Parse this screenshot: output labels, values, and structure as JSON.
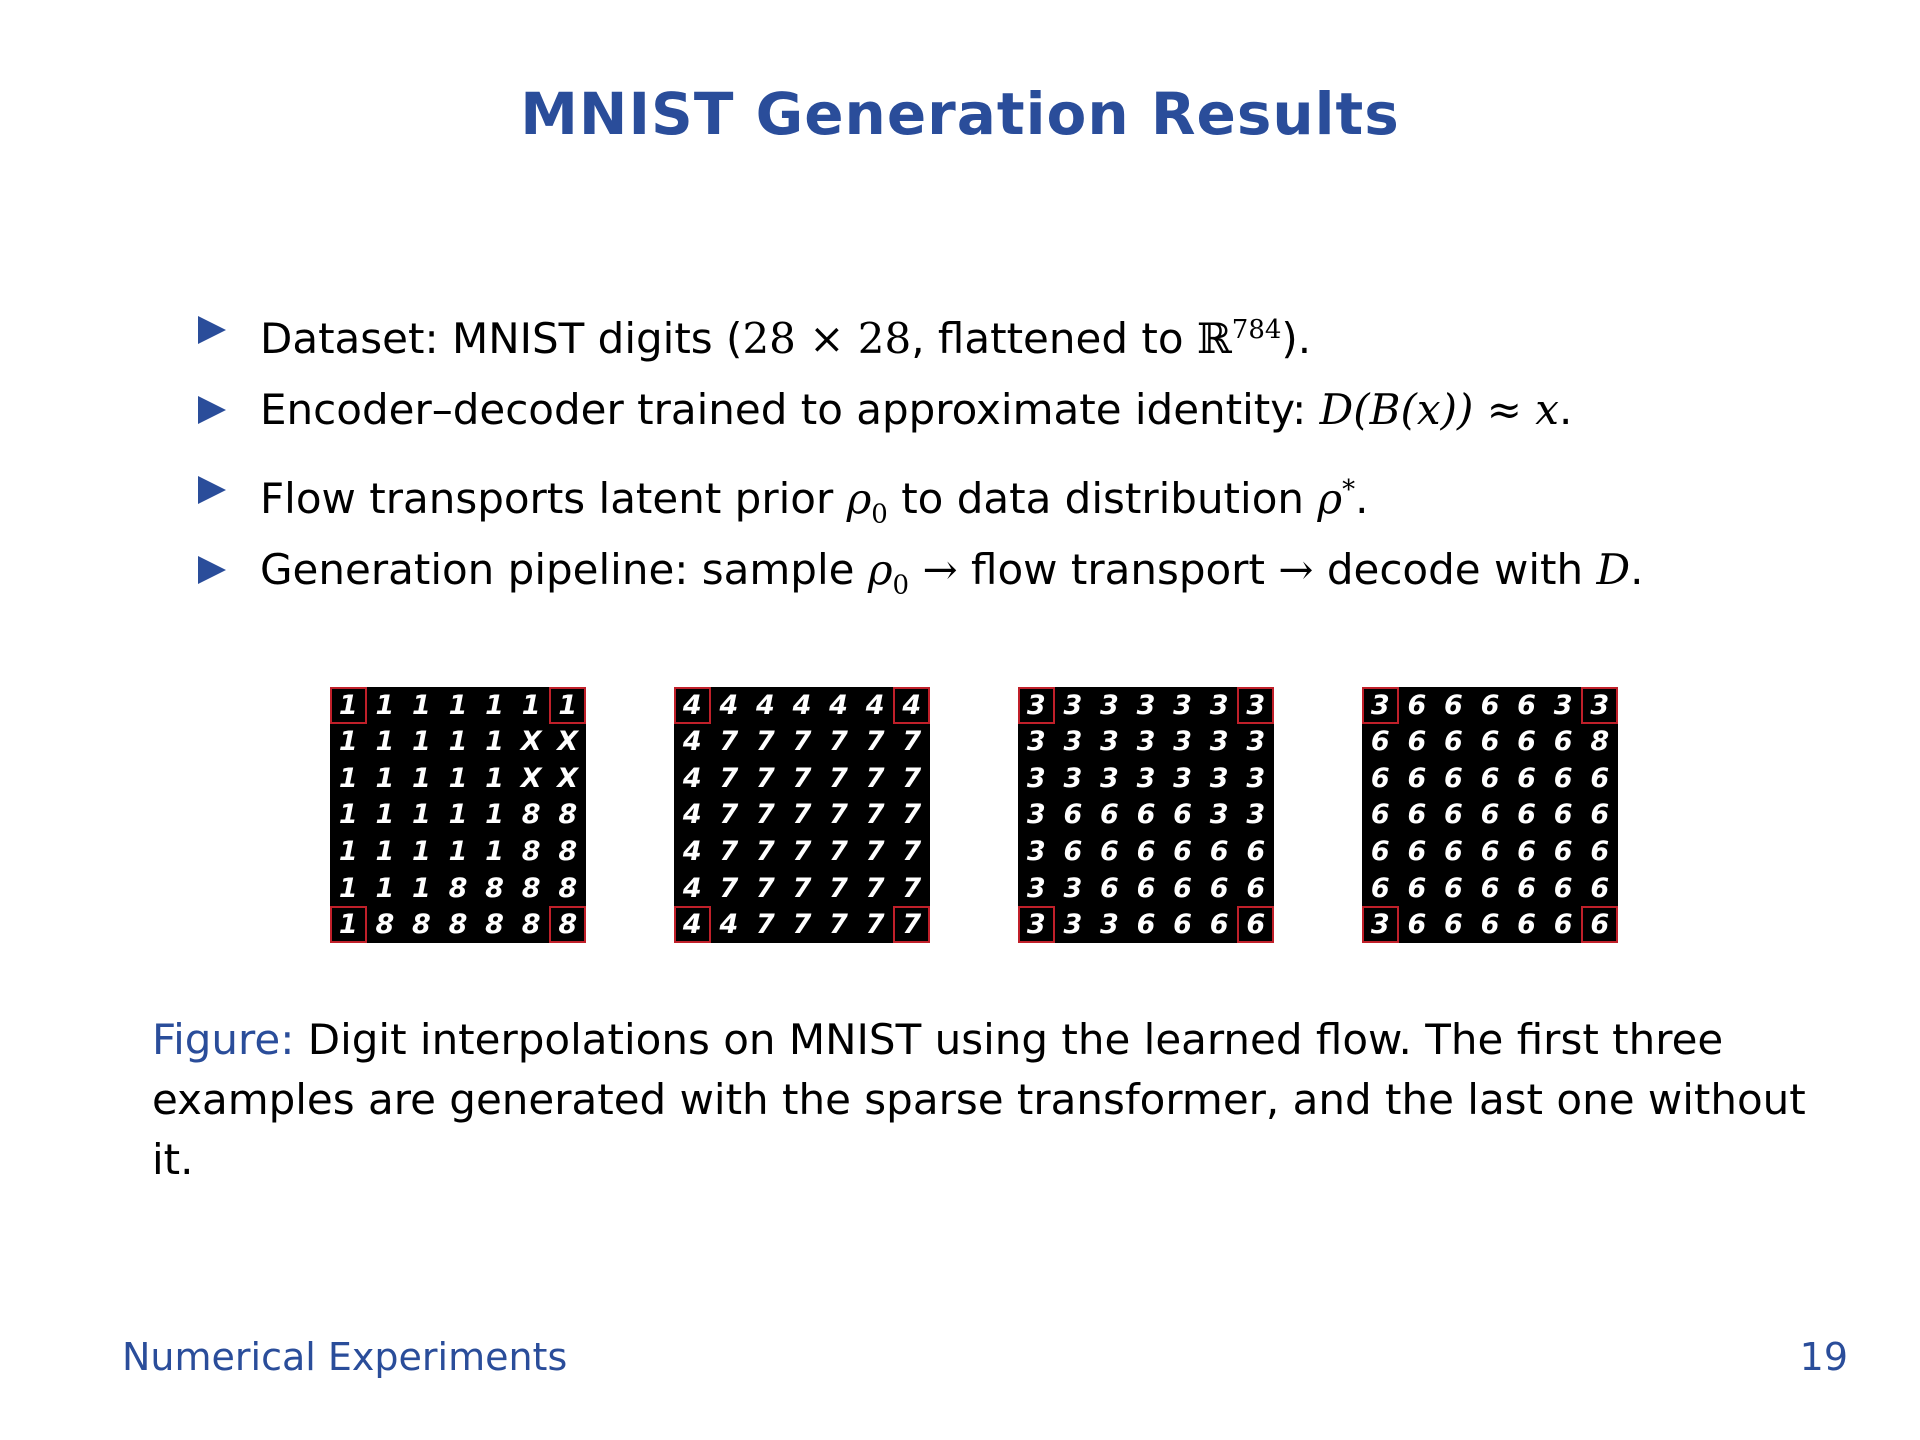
{
  "title": "MNIST Generation Results",
  "bullets": [
    {
      "a": "Dataset: MNIST digits (",
      "m1": "28 × 28",
      "b": ", flattened to ",
      "m2": "ℝ",
      "sup": "784",
      "c": ")."
    },
    {
      "a": "Encoder–decoder trained to approximate identity: ",
      "m1": "D(B(x)) ≈ x",
      "c": "."
    },
    {
      "a": "Flow transports latent prior ",
      "m1": "ρ",
      "sub": "0",
      "b": " to data distribution ",
      "m2": "ρ",
      "sup": "*",
      "c": "."
    },
    {
      "a": "Generation pipeline: sample ",
      "m1": "ρ",
      "sub": "0",
      "arrow1": " → ",
      "b": "flow transport",
      "arrow2": " → ",
      "c": "decode with ",
      "m2": "D",
      "d": "."
    }
  ],
  "grids": [
    {
      "rows": [
        [
          "1",
          "1",
          "1",
          "1",
          "1",
          "1",
          "1"
        ],
        [
          "1",
          "1",
          "1",
          "1",
          "1",
          "X",
          "X"
        ],
        [
          "1",
          "1",
          "1",
          "1",
          "1",
          "X",
          "X"
        ],
        [
          "1",
          "1",
          "1",
          "1",
          "1",
          "8",
          "8"
        ],
        [
          "1",
          "1",
          "1",
          "1",
          "1",
          "8",
          "8"
        ],
        [
          "1",
          "1",
          "1",
          "8",
          "8",
          "8",
          "8"
        ],
        [
          "1",
          "8",
          "8",
          "8",
          "8",
          "8",
          "8"
        ]
      ]
    },
    {
      "rows": [
        [
          "4",
          "4",
          "4",
          "4",
          "4",
          "4",
          "4"
        ],
        [
          "4",
          "7",
          "7",
          "7",
          "7",
          "7",
          "7"
        ],
        [
          "4",
          "7",
          "7",
          "7",
          "7",
          "7",
          "7"
        ],
        [
          "4",
          "7",
          "7",
          "7",
          "7",
          "7",
          "7"
        ],
        [
          "4",
          "7",
          "7",
          "7",
          "7",
          "7",
          "7"
        ],
        [
          "4",
          "7",
          "7",
          "7",
          "7",
          "7",
          "7"
        ],
        [
          "4",
          "4",
          "7",
          "7",
          "7",
          "7",
          "7"
        ]
      ]
    },
    {
      "rows": [
        [
          "3",
          "3",
          "3",
          "3",
          "3",
          "3",
          "3"
        ],
        [
          "3",
          "3",
          "3",
          "3",
          "3",
          "3",
          "3"
        ],
        [
          "3",
          "3",
          "3",
          "3",
          "3",
          "3",
          "3"
        ],
        [
          "3",
          "6",
          "6",
          "6",
          "6",
          "3",
          "3"
        ],
        [
          "3",
          "6",
          "6",
          "6",
          "6",
          "6",
          "6"
        ],
        [
          "3",
          "3",
          "6",
          "6",
          "6",
          "6",
          "6"
        ],
        [
          "3",
          "3",
          "3",
          "6",
          "6",
          "6",
          "6"
        ]
      ]
    },
    {
      "rows": [
        [
          "3",
          "6",
          "6",
          "6",
          "6",
          "3",
          "3"
        ],
        [
          "6",
          "6",
          "6",
          "6",
          "6",
          "6",
          "8"
        ],
        [
          "6",
          "6",
          "6",
          "6",
          "6",
          "6",
          "6"
        ],
        [
          "6",
          "6",
          "6",
          "6",
          "6",
          "6",
          "6"
        ],
        [
          "6",
          "6",
          "6",
          "6",
          "6",
          "6",
          "6"
        ],
        [
          "6",
          "6",
          "6",
          "6",
          "6",
          "6",
          "6"
        ],
        [
          "3",
          "6",
          "6",
          "6",
          "6",
          "6",
          "6"
        ]
      ]
    }
  ],
  "caption": {
    "label": "Figure:",
    "text": " Digit interpolations on MNIST using the learned flow. The first three examples are generated with the sparse transformer, and the last one without it."
  },
  "footer": {
    "section": "Numerical Experiments",
    "page": "19"
  }
}
